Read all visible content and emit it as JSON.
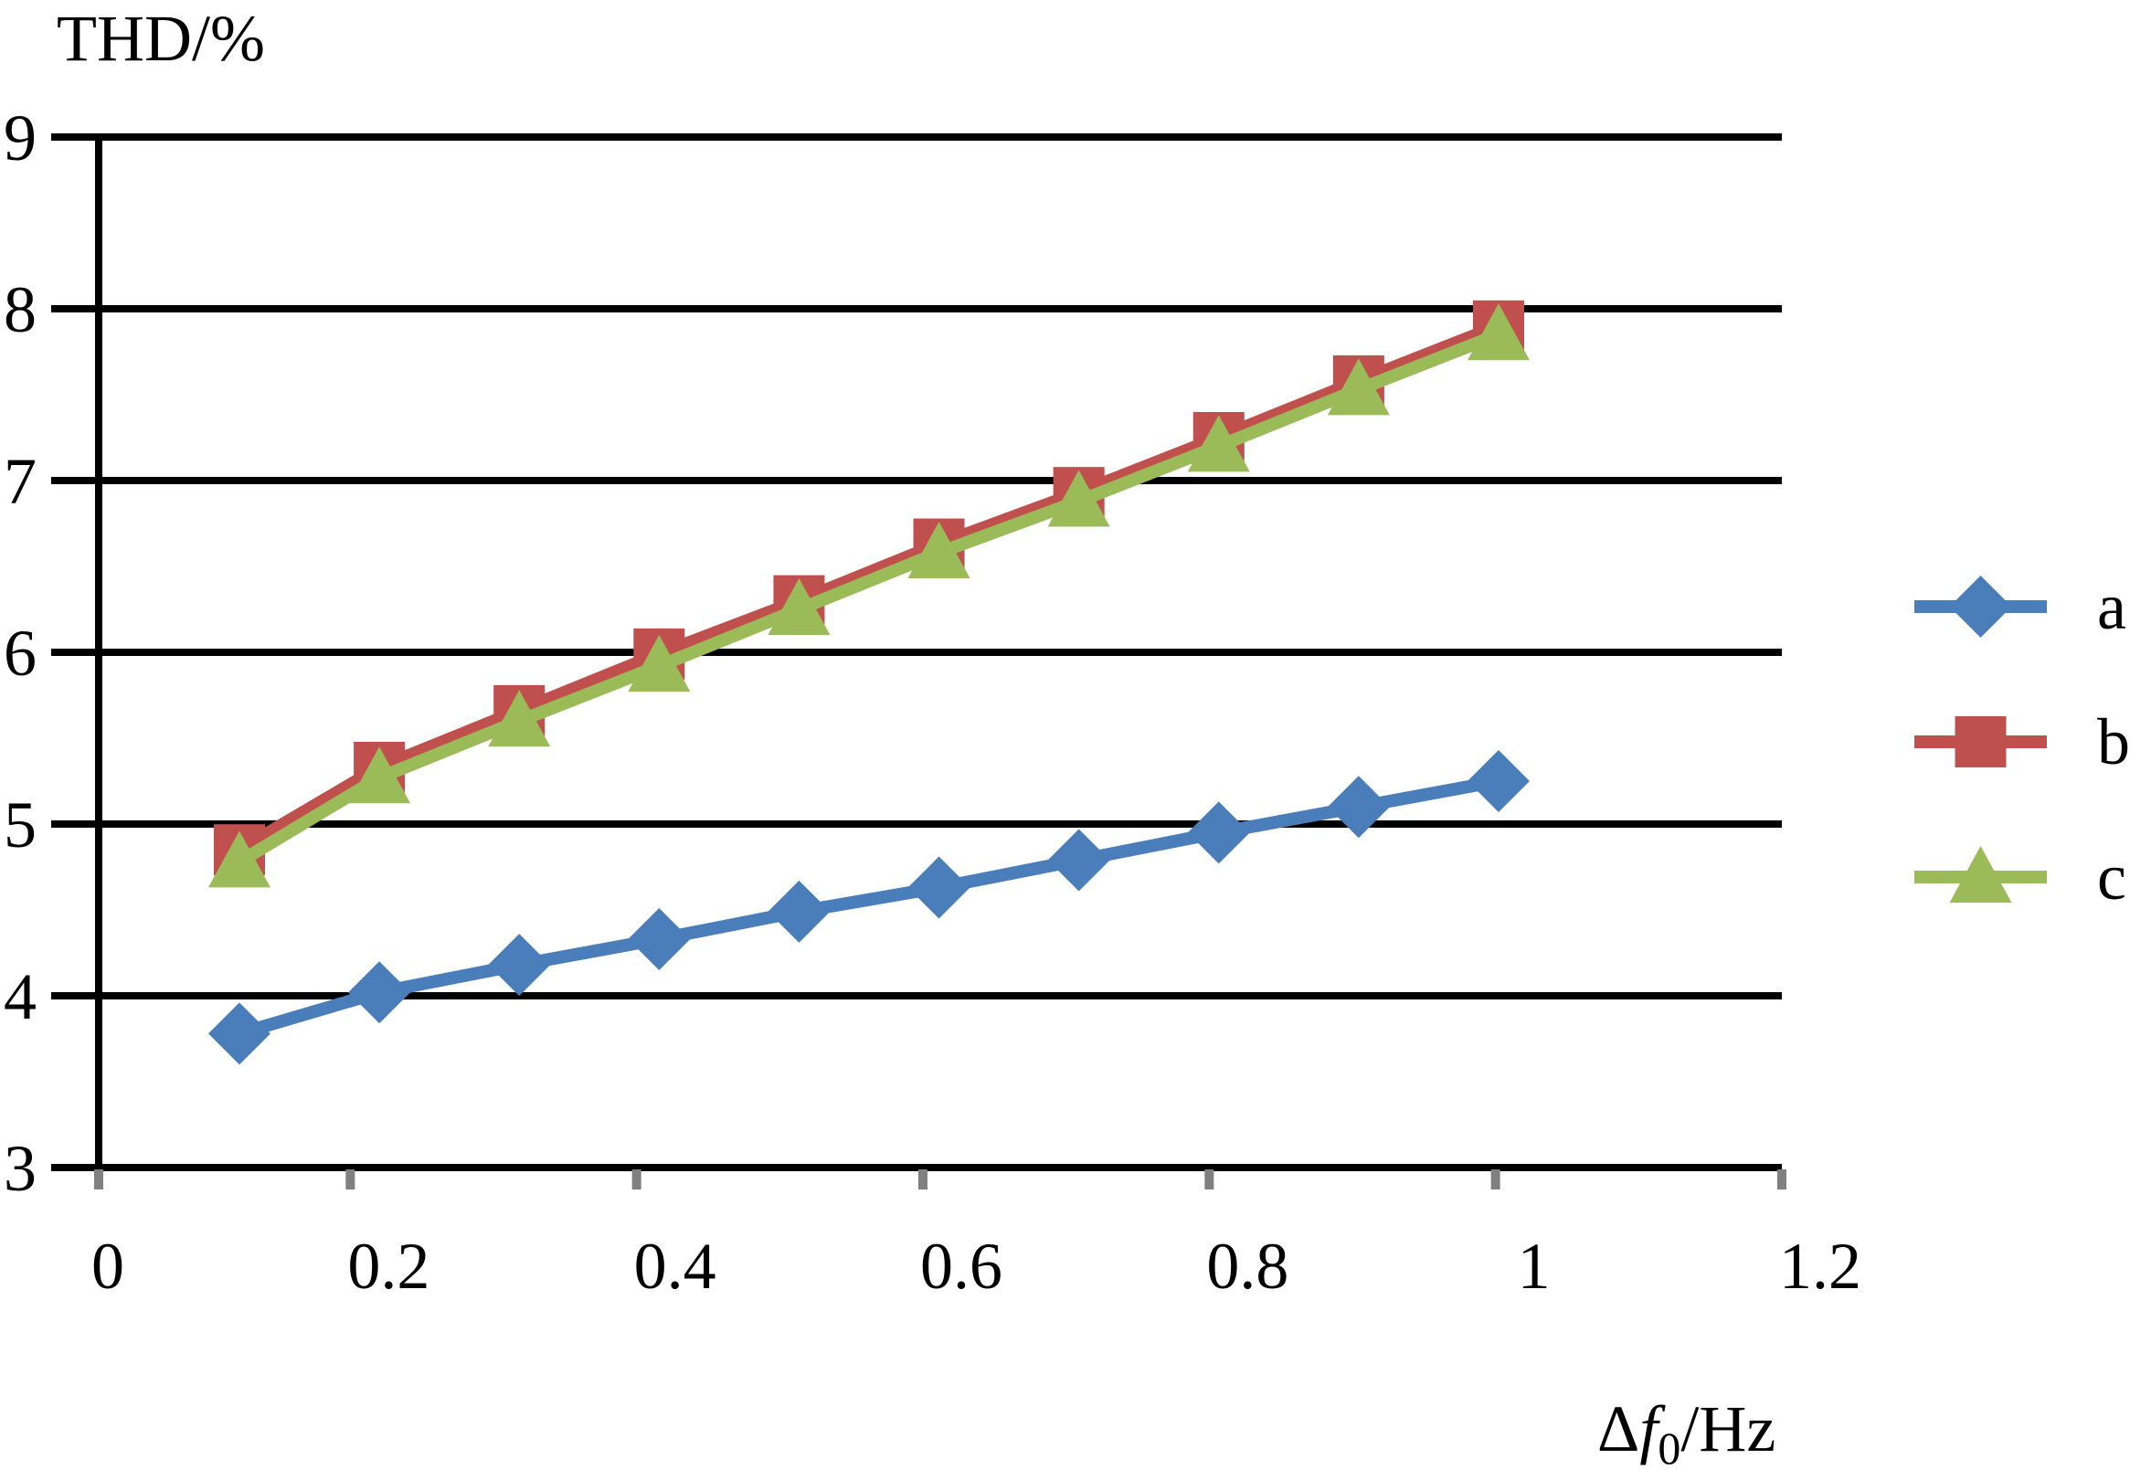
{
  "chart_data": {
    "type": "line",
    "ylabel": "THD/%",
    "xlabel_parts": {
      "prefix": "Δ",
      "var": "f",
      "sub": "0",
      "suffix": "/Hz"
    },
    "xlim": [
      0,
      1.2
    ],
    "ylim": [
      3,
      9
    ],
    "x_ticks": [
      0,
      0.2,
      0.4,
      0.6,
      0.8,
      1,
      1.2
    ],
    "x_tick_labels": [
      "0",
      "0.2",
      "0.4",
      "0.6",
      "0.8",
      "1",
      "1.2"
    ],
    "y_ticks": [
      3,
      4,
      5,
      6,
      7,
      8,
      9
    ],
    "y_tick_labels": [
      "3",
      "4",
      "5",
      "6",
      "7",
      "8",
      "9"
    ],
    "grid": "horizontal",
    "legend_position": "right",
    "x": [
      0.1,
      0.2,
      0.3,
      0.4,
      0.5,
      0.6,
      0.7,
      0.8,
      0.9,
      1.0
    ],
    "series": [
      {
        "name": "a",
        "marker": "diamond",
        "color": "#4a7ebb",
        "values": [
          3.78,
          4.02,
          4.18,
          4.33,
          4.49,
          4.63,
          4.79,
          4.95,
          5.1,
          5.25
        ]
      },
      {
        "name": "b",
        "marker": "square",
        "color": "#c0504d",
        "values": [
          4.85,
          5.33,
          5.66,
          5.99,
          6.3,
          6.63,
          6.93,
          7.25,
          7.58,
          7.9
        ]
      },
      {
        "name": "c",
        "marker": "triangle",
        "color": "#9bbb59",
        "values": [
          4.78,
          5.27,
          5.6,
          5.92,
          6.25,
          6.58,
          6.88,
          7.2,
          7.53,
          7.85
        ]
      }
    ]
  }
}
